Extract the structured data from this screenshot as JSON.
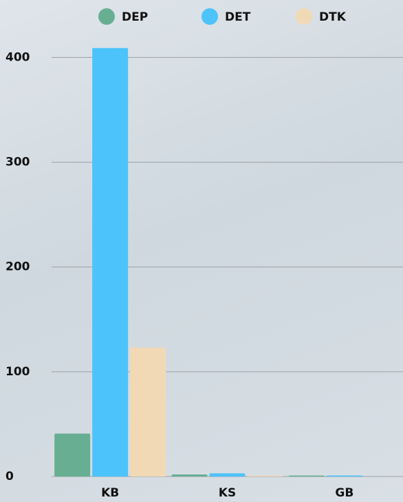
{
  "chart_data": {
    "type": "bar",
    "categories": [
      "KB",
      "KS",
      "GB"
    ],
    "series": [
      {
        "name": "DEP",
        "color": "#67ae92",
        "values": [
          41,
          2,
          1
        ]
      },
      {
        "name": "DET",
        "color": "#4cc3fb",
        "values": [
          409,
          3,
          1
        ]
      },
      {
        "name": "DTK",
        "color": "#f2d9b5",
        "values": [
          123,
          1,
          0
        ]
      }
    ],
    "ylim": [
      0,
      420
    ],
    "yticks": [
      0,
      100,
      200,
      300,
      400
    ],
    "grid": true,
    "legend": "top"
  }
}
